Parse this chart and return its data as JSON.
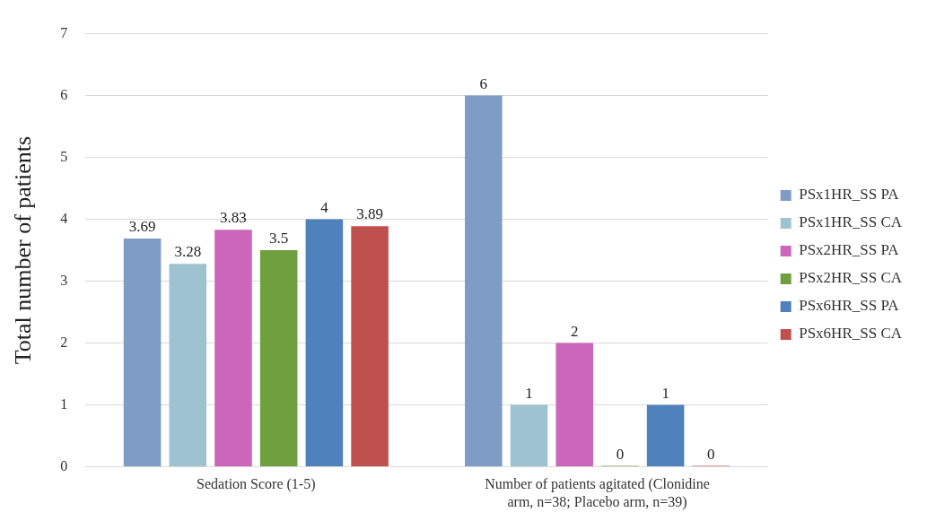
{
  "chart_data": {
    "type": "bar",
    "ylabel": "Total number of patients",
    "categories": [
      "Sedation Score (1-5)",
      "Number of patients agitated (Clonidine arm, n=38; Placebo arm, n=39)"
    ],
    "series": [
      {
        "name": "PSx1HR_SS PA",
        "color": "#7f9cc4",
        "values": [
          3.69,
          6
        ]
      },
      {
        "name": "PSx1HR_SS CA",
        "color": "#9cc3cf",
        "values": [
          3.28,
          1
        ]
      },
      {
        "name": "PSx2HR_SS PA",
        "color": "#cc66bb",
        "values": [
          3.83,
          2
        ]
      },
      {
        "name": "PSx2HR_SS CA",
        "color": "#6f9f3f",
        "values": [
          3.5,
          0
        ]
      },
      {
        "name": "PSx6HR_SS PA",
        "color": "#4f81bd",
        "values": [
          4,
          1
        ]
      },
      {
        "name": "PSx6HR_SS CA",
        "color": "#c0504d",
        "values": [
          3.89,
          0
        ]
      }
    ],
    "ylim": [
      0,
      7
    ],
    "yticks": [
      0,
      1,
      2,
      3,
      4,
      5,
      6,
      7
    ],
    "grid": "y",
    "legend": "right",
    "data_labels": true
  }
}
